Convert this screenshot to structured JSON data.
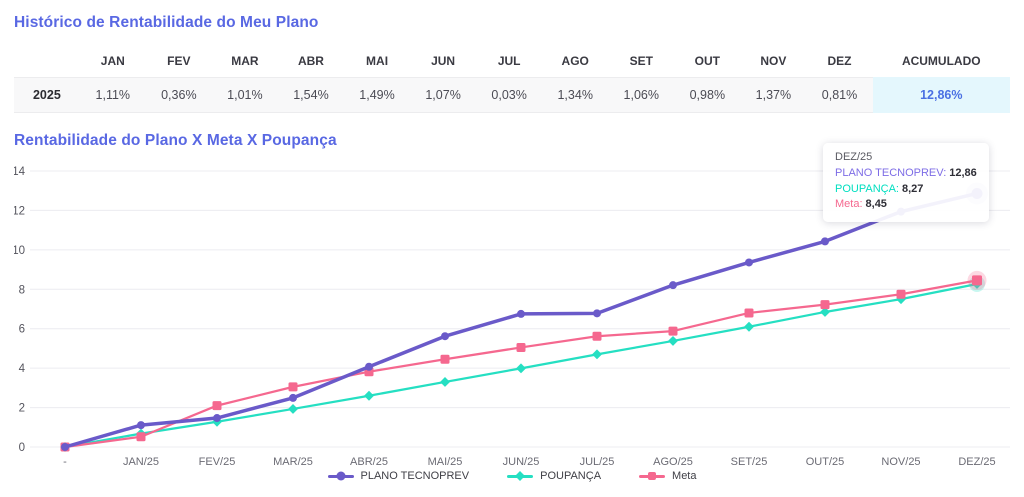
{
  "page": {
    "history_title": "Histórico de Rentabilidade do Meu Plano",
    "chart_title": "Rentabilidade do Plano X Meta X Poupança"
  },
  "colors": {
    "title_blue": "#5968e3",
    "plan_purple": "#6a5ac9",
    "savings_cyan": "#25dfc2",
    "goal_pink": "#f5688f",
    "accumulated_bg": "#e4f7fd",
    "accumulated_text": "#4a6fe3",
    "row_bg": "#f8f8f9",
    "gridline": "#ececf0"
  },
  "returns_table": {
    "year_label": "2025",
    "month_headers": [
      "JAN",
      "FEV",
      "MAR",
      "ABR",
      "MAI",
      "JUN",
      "JUL",
      "AGO",
      "SET",
      "OUT",
      "NOV",
      "DEZ"
    ],
    "accumulated_header": "ACUMULADO",
    "month_values": [
      "1,11%",
      "0,36%",
      "1,01%",
      "1,54%",
      "1,49%",
      "1,07%",
      "0,03%",
      "1,34%",
      "1,06%",
      "0,98%",
      "1,37%",
      "0,81%"
    ],
    "accumulated_value": "12,86%"
  },
  "chart_data": {
    "type": "line",
    "title": "Rentabilidade do Plano X Meta X Poupança",
    "categories": [
      "-",
      "JAN/25",
      "FEV/25",
      "MAR/25",
      "ABR/25",
      "MAI/25",
      "JUN/25",
      "JUL/25",
      "AGO/25",
      "SET/25",
      "OUT/25",
      "NOV/25",
      "DEZ/25"
    ],
    "series": [
      {
        "name": "PLANO TECNOPREV",
        "color": "#6a5ac9",
        "marker": "circle",
        "values": [
          0,
          1.11,
          1.47,
          2.49,
          4.07,
          5.62,
          6.75,
          6.78,
          8.21,
          9.36,
          10.43,
          11.94,
          12.86
        ]
      },
      {
        "name": "POUPANÇA",
        "color": "#25dfc2",
        "marker": "diamond",
        "values": [
          0,
          0.68,
          1.28,
          1.93,
          2.6,
          3.3,
          3.99,
          4.7,
          5.38,
          6.1,
          6.85,
          7.5,
          8.27
        ]
      },
      {
        "name": "Meta",
        "color": "#f5688f",
        "marker": "square",
        "values": [
          0,
          0.52,
          2.1,
          3.05,
          3.82,
          4.45,
          5.05,
          5.62,
          5.88,
          6.8,
          7.22,
          7.75,
          8.45
        ]
      }
    ],
    "ylim": [
      0,
      14
    ],
    "yticks": [
      0,
      2,
      4,
      6,
      8,
      10,
      12,
      14
    ],
    "grid": true,
    "legend_position": "bottom",
    "highlighted_point": "DEZ/25"
  },
  "tooltip": {
    "title": "DEZ/25",
    "rows": [
      {
        "label": "PLANO TECNOPREV",
        "value": "12,86",
        "color": "#7d6ce6"
      },
      {
        "label": "POUPANÇA",
        "value": "8,27",
        "color": "#00dfc0"
      },
      {
        "label": "Meta",
        "value": "8,45",
        "color": "#f5688f"
      }
    ]
  }
}
